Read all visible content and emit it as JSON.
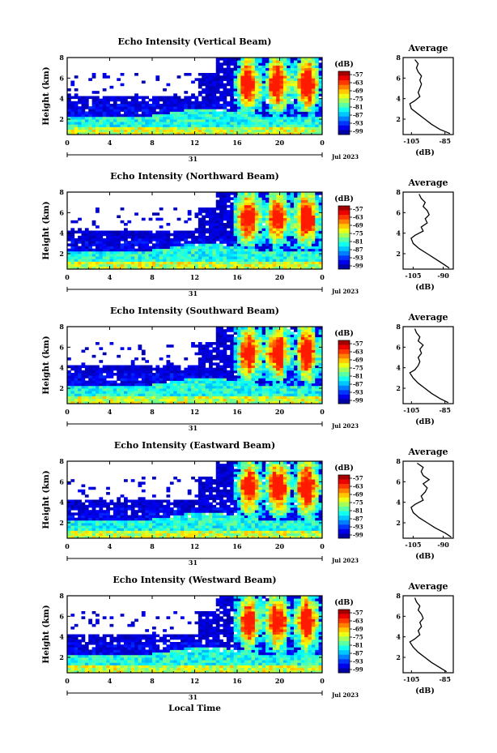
{
  "chart_data": [
    {
      "type": "heatmap",
      "title": "Echo Intensity (Vertical Beam)",
      "ylabel": "Height (km)",
      "yticks": [
        "2",
        "4",
        "6",
        "8"
      ],
      "ylim": [
        0.5,
        8
      ],
      "xticks": [
        "0",
        "4",
        "8",
        "12",
        "16",
        "20",
        "0"
      ],
      "xlim": [
        0,
        24
      ],
      "day_label": "31",
      "date_label": "Jul 2023",
      "colorbar": {
        "unit": "(dB)",
        "ticks": [
          "-57",
          "-63",
          "-69",
          "-75",
          "-81",
          "-87",
          "-93",
          "-99"
        ]
      },
      "profile": {
        "title": "Average",
        "xlabel": "(dB)",
        "xticks": [
          "-105",
          "-85"
        ],
        "xlim": [
          -110,
          -80
        ],
        "yticks": [
          "2",
          "4",
          "6",
          "8"
        ],
        "ylim": [
          0.5,
          8
        ],
        "heights": [
          0.6,
          1.0,
          1.5,
          2.0,
          2.5,
          3.0,
          3.5,
          3.8,
          4.2,
          4.6,
          5.0,
          5.4,
          5.8,
          6.2,
          6.6,
          7.0,
          7.4,
          7.8
        ],
        "values": [
          -82,
          -88,
          -93,
          -97,
          -101,
          -105,
          -106,
          -103,
          -100,
          -101,
          -100,
          -99,
          -100,
          -99,
          -101,
          -102,
          -101,
          -103
        ]
      }
    },
    {
      "type": "heatmap",
      "title": "Echo Intensity (Northward Beam)",
      "ylabel": "Height (km)",
      "yticks": [
        "2",
        "4",
        "6",
        "8"
      ],
      "ylim": [
        0.5,
        8
      ],
      "xticks": [
        "0",
        "4",
        "8",
        "12",
        "16",
        "20",
        "0"
      ],
      "xlim": [
        0,
        24
      ],
      "day_label": "31",
      "date_label": "Jul 2023",
      "colorbar": {
        "unit": "(dB)",
        "ticks": [
          "-57",
          "-63",
          "-69",
          "-75",
          "-81",
          "-87",
          "-93",
          "-99"
        ]
      },
      "profile": {
        "title": "Average",
        "xlabel": "(dB)",
        "xticks": [
          "-105",
          "-90"
        ],
        "xlim": [
          -110,
          -85
        ],
        "yticks": [
          "2",
          "4",
          "6",
          "8"
        ],
        "ylim": [
          0.5,
          8
        ],
        "heights": [
          0.6,
          1.0,
          1.5,
          2.0,
          2.5,
          3.0,
          3.5,
          3.8,
          4.2,
          4.6,
          5.0,
          5.4,
          5.8,
          6.2,
          6.6,
          7.0,
          7.4,
          7.8
        ],
        "values": [
          -87,
          -90,
          -94,
          -98,
          -102,
          -105,
          -106,
          -104,
          -100,
          -101,
          -98,
          -99,
          -97,
          -98,
          -100,
          -99,
          -101,
          -102
        ]
      }
    },
    {
      "type": "heatmap",
      "title": "Echo Intensity (Southward Beam)",
      "ylabel": "Height (km)",
      "yticks": [
        "2",
        "4",
        "6",
        "8"
      ],
      "ylim": [
        0.5,
        8
      ],
      "xticks": [
        "0",
        "4",
        "8",
        "12",
        "16",
        "20",
        "0"
      ],
      "xlim": [
        0,
        24
      ],
      "day_label": "31",
      "date_label": "Jul 2023",
      "colorbar": {
        "unit": "(dB)",
        "ticks": [
          "-57",
          "-63",
          "-69",
          "-75",
          "-81",
          "-87",
          "-93",
          "-99"
        ]
      },
      "profile": {
        "title": "Average",
        "xlabel": "(dB)",
        "xticks": [
          "-105",
          "-85"
        ],
        "xlim": [
          -110,
          -80
        ],
        "yticks": [
          "2",
          "4",
          "6",
          "8"
        ],
        "ylim": [
          0.5,
          8
        ],
        "heights": [
          0.6,
          1.0,
          1.5,
          2.0,
          2.5,
          3.0,
          3.5,
          3.8,
          4.2,
          4.6,
          5.0,
          5.4,
          5.8,
          6.2,
          6.6,
          7.0,
          7.4,
          7.8
        ],
        "values": [
          -83,
          -88,
          -93,
          -97,
          -101,
          -104,
          -106,
          -103,
          -101,
          -100,
          -101,
          -99,
          -100,
          -98,
          -101,
          -100,
          -102,
          -103
        ]
      }
    },
    {
      "type": "heatmap",
      "title": "Echo Intensity (Eastward Beam)",
      "ylabel": "Height (km)",
      "yticks": [
        "2",
        "4",
        "6",
        "8"
      ],
      "ylim": [
        0.5,
        8
      ],
      "xticks": [
        "0",
        "4",
        "8",
        "12",
        "16",
        "20",
        "0"
      ],
      "xlim": [
        0,
        24
      ],
      "day_label": "31",
      "date_label": "Jul 2023",
      "colorbar": {
        "unit": "(dB)",
        "ticks": [
          "-57",
          "-63",
          "-69",
          "-75",
          "-81",
          "-87",
          "-93",
          "-99"
        ]
      },
      "profile": {
        "title": "Average",
        "xlabel": "(dB)",
        "xticks": [
          "-105",
          "-90"
        ],
        "xlim": [
          -110,
          -85
        ],
        "yticks": [
          "2",
          "4",
          "6",
          "8"
        ],
        "ylim": [
          0.5,
          8
        ],
        "heights": [
          0.6,
          1.0,
          1.5,
          2.0,
          2.5,
          3.0,
          3.5,
          3.8,
          4.2,
          4.6,
          5.0,
          5.4,
          5.8,
          6.2,
          6.6,
          7.0,
          7.4,
          7.8
        ],
        "values": [
          -86,
          -89,
          -94,
          -98,
          -102,
          -105,
          -106,
          -104,
          -100,
          -101,
          -99,
          -98,
          -100,
          -97,
          -100,
          -101,
          -100,
          -103
        ]
      }
    },
    {
      "type": "heatmap",
      "title": "Echo Intensity (Westward Beam)",
      "ylabel": "Height (km)",
      "yticks": [
        "2",
        "4",
        "6",
        "8"
      ],
      "ylim": [
        0.5,
        8
      ],
      "xticks": [
        "0",
        "4",
        "8",
        "12",
        "16",
        "20",
        "0"
      ],
      "xlim": [
        0,
        24
      ],
      "day_label": "31",
      "date_label": "Jul 2023",
      "xlabel": "Local Time",
      "colorbar": {
        "unit": "(dB)",
        "ticks": [
          "-57",
          "-63",
          "-69",
          "-75",
          "-81",
          "-87",
          "-93",
          "-99"
        ]
      },
      "profile": {
        "title": "Average",
        "xlabel": "(dB)",
        "xticks": [
          "-105",
          "-85"
        ],
        "xlim": [
          -110,
          -80
        ],
        "yticks": [
          "2",
          "4",
          "6",
          "8"
        ],
        "ylim": [
          0.5,
          8
        ],
        "heights": [
          0.6,
          1.0,
          1.5,
          2.0,
          2.5,
          3.0,
          3.5,
          3.8,
          4.2,
          4.6,
          5.0,
          5.4,
          5.8,
          6.2,
          6.6,
          7.0,
          7.4,
          7.8
        ],
        "values": [
          -84,
          -88,
          -93,
          -97,
          -101,
          -104,
          -106,
          -103,
          -100,
          -101,
          -99,
          -100,
          -98,
          -99,
          -101,
          -100,
          -102,
          -103
        ]
      }
    }
  ]
}
